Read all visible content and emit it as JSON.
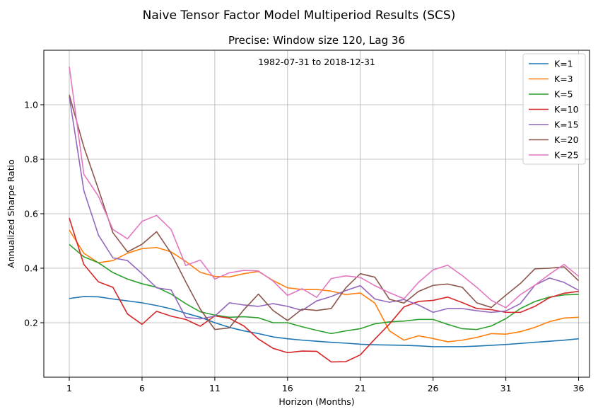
{
  "chart_data": {
    "type": "line",
    "suptitle": "Naive Tensor Factor Model Multiperiod Results (SCS)",
    "title": "Precise: Window size 120, Lag 36",
    "annotation": "1982-07-31 to 2018-12-31",
    "xlabel": "Horizon (Months)",
    "ylabel": "Annualized Sharpe Ratio",
    "xlim": [
      -0.75,
      36.75
    ],
    "ylim": [
      0.0,
      1.2
    ],
    "xticks": [
      1,
      6,
      11,
      16,
      21,
      26,
      31,
      36
    ],
    "xtick_labels": [
      "1",
      "6",
      "11",
      "16",
      "21",
      "26",
      "31",
      "36"
    ],
    "yticks": [
      0.2,
      0.4,
      0.6,
      0.8,
      1.0
    ],
    "ytick_labels": [
      "0.2",
      "0.4",
      "0.6",
      "0.8",
      "1.0"
    ],
    "grid": true,
    "legend_position": "top-right",
    "x": [
      1,
      2,
      3,
      4,
      5,
      6,
      7,
      8,
      9,
      10,
      11,
      12,
      13,
      14,
      15,
      16,
      17,
      18,
      19,
      20,
      21,
      22,
      23,
      24,
      25,
      26,
      27,
      28,
      29,
      30,
      31,
      32,
      33,
      34,
      35,
      36
    ],
    "series": [
      {
        "name": "K=1",
        "color": "#1f77b4",
        "values": [
          0.289,
          0.296,
          0.295,
          0.287,
          0.28,
          0.273,
          0.263,
          0.251,
          0.235,
          0.22,
          0.2,
          0.183,
          0.17,
          0.16,
          0.148,
          0.141,
          0.136,
          0.132,
          0.128,
          0.125,
          0.121,
          0.119,
          0.118,
          0.117,
          0.115,
          0.112,
          0.112,
          0.112,
          0.114,
          0.117,
          0.12,
          0.124,
          0.128,
          0.132,
          0.136,
          0.141
        ]
      },
      {
        "name": "K=3",
        "color": "#ff7f0e",
        "values": [
          0.54,
          0.455,
          0.42,
          0.428,
          0.455,
          0.472,
          0.476,
          0.46,
          0.425,
          0.385,
          0.37,
          0.368,
          0.38,
          0.388,
          0.355,
          0.328,
          0.322,
          0.322,
          0.316,
          0.303,
          0.309,
          0.272,
          0.17,
          0.136,
          0.152,
          0.142,
          0.13,
          0.136,
          0.146,
          0.16,
          0.158,
          0.167,
          0.183,
          0.204,
          0.217,
          0.22
        ]
      },
      {
        "name": "K=5",
        "color": "#2ca02c",
        "values": [
          0.487,
          0.442,
          0.42,
          0.384,
          0.36,
          0.343,
          0.33,
          0.305,
          0.27,
          0.24,
          0.228,
          0.22,
          0.222,
          0.218,
          0.2,
          0.2,
          0.185,
          0.172,
          0.16,
          0.17,
          0.178,
          0.196,
          0.203,
          0.206,
          0.212,
          0.212,
          0.194,
          0.178,
          0.175,
          0.188,
          0.215,
          0.252,
          0.278,
          0.294,
          0.302,
          0.304
        ]
      },
      {
        "name": "K=10",
        "color": "#d62728",
        "values": [
          0.584,
          0.414,
          0.35,
          0.33,
          0.232,
          0.194,
          0.242,
          0.224,
          0.212,
          0.187,
          0.225,
          0.216,
          0.188,
          0.14,
          0.106,
          0.09,
          0.096,
          0.095,
          0.056,
          0.057,
          0.082,
          0.14,
          0.195,
          0.258,
          0.278,
          0.282,
          0.294,
          0.274,
          0.252,
          0.248,
          0.238,
          0.238,
          0.26,
          0.292,
          0.308,
          0.315
        ]
      },
      {
        "name": "K=15",
        "color": "#9467bd",
        "values": [
          1.03,
          0.685,
          0.522,
          0.438,
          0.428,
          0.38,
          0.328,
          0.32,
          0.22,
          0.214,
          0.224,
          0.273,
          0.265,
          0.26,
          0.27,
          0.26,
          0.245,
          0.28,
          0.296,
          0.318,
          0.336,
          0.287,
          0.275,
          0.285,
          0.265,
          0.238,
          0.252,
          0.252,
          0.244,
          0.238,
          0.243,
          0.27,
          0.338,
          0.364,
          0.348,
          0.319
        ]
      },
      {
        "name": "K=20",
        "color": "#8c564b",
        "values": [
          1.036,
          0.845,
          0.69,
          0.53,
          0.46,
          0.488,
          0.534,
          0.455,
          0.35,
          0.25,
          0.175,
          0.181,
          0.248,
          0.305,
          0.245,
          0.208,
          0.25,
          0.245,
          0.252,
          0.328,
          0.38,
          0.367,
          0.286,
          0.272,
          0.315,
          0.337,
          0.342,
          0.33,
          0.273,
          0.256,
          0.301,
          0.344,
          0.398,
          0.4,
          0.405,
          0.354
        ]
      },
      {
        "name": "K=25",
        "color": "#e377c2",
        "values": [
          1.14,
          0.745,
          0.664,
          0.542,
          0.508,
          0.572,
          0.594,
          0.542,
          0.41,
          0.43,
          0.36,
          0.383,
          0.392,
          0.39,
          0.353,
          0.3,
          0.325,
          0.293,
          0.362,
          0.372,
          0.366,
          0.336,
          0.31,
          0.288,
          0.348,
          0.394,
          0.411,
          0.373,
          0.33,
          0.282,
          0.255,
          0.303,
          0.338,
          0.378,
          0.414,
          0.37
        ]
      }
    ]
  }
}
